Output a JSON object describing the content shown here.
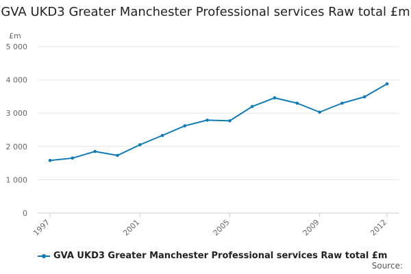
{
  "chart_data": {
    "type": "line",
    "title": "GVA UKD3 Greater Manchester Professional services Raw total £m",
    "ylabel": "£m",
    "xlabel": "",
    "ylim": [
      0,
      5000
    ],
    "y_ticks": [
      0,
      1000,
      2000,
      3000,
      4000,
      5000
    ],
    "y_tick_labels": [
      "0",
      "1 000",
      "2 000",
      "3 000",
      "4 000",
      "5 000"
    ],
    "x_tick_labels": [
      "1997",
      "2001",
      "2005",
      "2009",
      "2012"
    ],
    "x": [
      1997,
      1998,
      1999,
      2000,
      2001,
      2002,
      2003,
      2004,
      2005,
      2006,
      2007,
      2008,
      2009,
      2010,
      2011,
      2012
    ],
    "series": [
      {
        "name": "GVA UKD3 Greater Manchester Professional services Raw total £m",
        "color": "#0e7ab8",
        "values": [
          1580,
          1650,
          1850,
          1730,
          2050,
          2330,
          2620,
          2790,
          2770,
          3200,
          3460,
          3300,
          3030,
          3300,
          3490,
          3880
        ]
      }
    ],
    "grid": true,
    "legend_position": "bottom-left"
  },
  "source_label": "Source:"
}
